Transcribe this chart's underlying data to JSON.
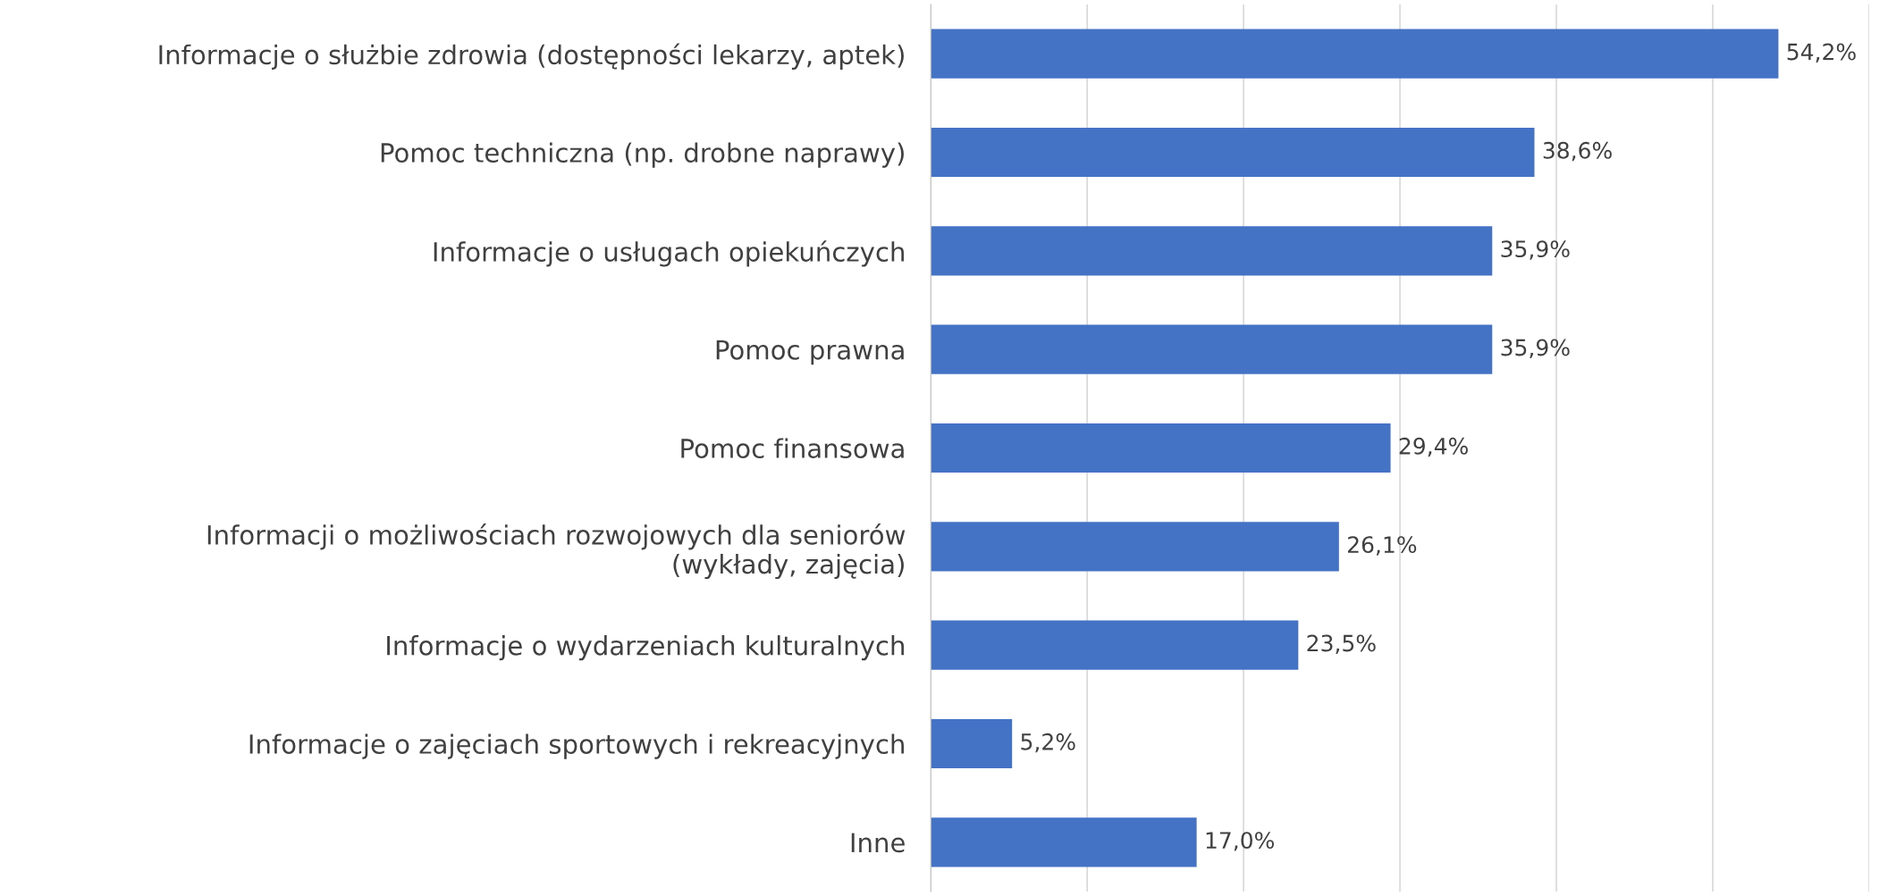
{
  "chart_data": {
    "type": "bar",
    "orientation": "horizontal",
    "categories": [
      "Informacje o służbie zdrowia (dostępności lekarzy, aptek)",
      "Pomoc techniczna (np. drobne naprawy)",
      "Informacje o usługach opiekuńczych",
      "Pomoc prawna",
      "Pomoc finansowa",
      "Informacji o możliwościach rozwojowych dla seniorów\n(wykłady, zajęcia)",
      "Informacje o wydarzeniach kulturalnych",
      "Informacje o zajęciach sportowych i rekreacyjnych",
      "Inne"
    ],
    "values": [
      54.2,
      38.6,
      35.9,
      35.9,
      29.4,
      26.1,
      23.5,
      5.2,
      17.0
    ],
    "value_labels": [
      "54,2%",
      "38,6%",
      "35,9%",
      "35,9%",
      "29,4%",
      "26,1%",
      "23,5%",
      "5,2%",
      "17,0%"
    ],
    "color": "#4472c4",
    "xlim": [
      0,
      60
    ],
    "xticks": [
      {
        "value": 0,
        "label": null
      },
      {
        "value": 10,
        "label": null
      },
      {
        "value": 20,
        "label": null
      },
      {
        "value": 30,
        "label": null
      },
      {
        "value": 40,
        "label": null
      },
      {
        "value": 50,
        "label": null
      },
      {
        "value": 60,
        "label": null
      }
    ],
    "grid": "x"
  }
}
